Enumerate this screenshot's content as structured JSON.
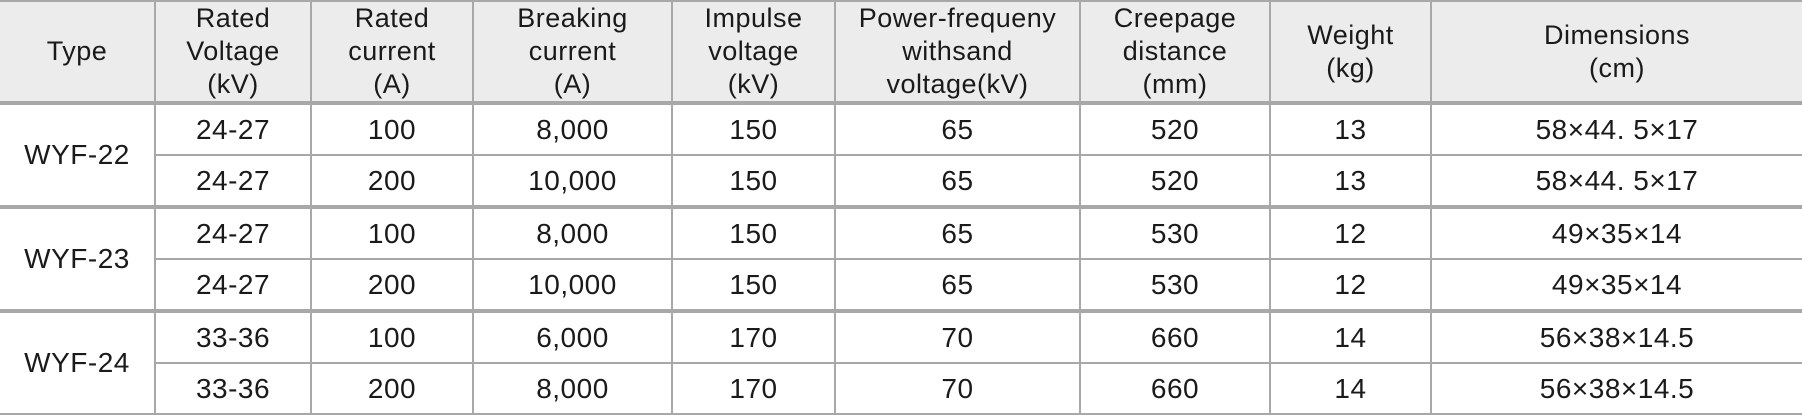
{
  "table": {
    "header": [
      [
        "Type"
      ],
      [
        "Rated",
        "Voltage",
        "(kV)"
      ],
      [
        "Rated",
        "current",
        "(A)"
      ],
      [
        "Breaking",
        "current",
        "(A)"
      ],
      [
        "Impulse",
        "voltage",
        "(kV)"
      ],
      [
        "Power-frequeny",
        "withsand",
        "voltage(kV)"
      ],
      [
        "Creepage",
        "distance",
        "(mm)"
      ],
      [
        "Weight",
        "(kg)"
      ],
      [
        "Dimensions",
        "(cm)"
      ]
    ],
    "groups": [
      {
        "type": "WYF-22",
        "rows": [
          [
            "24-27",
            "100",
            "8,000",
            "150",
            "65",
            "520",
            "13",
            "58×44. 5×17"
          ],
          [
            "24-27",
            "200",
            "10,000",
            "150",
            "65",
            "520",
            "13",
            "58×44. 5×17"
          ]
        ]
      },
      {
        "type": "WYF-23",
        "rows": [
          [
            "24-27",
            "100",
            "8,000",
            "150",
            "65",
            "530",
            "12",
            "49×35×14"
          ],
          [
            "24-27",
            "200",
            "10,000",
            "150",
            "65",
            "530",
            "12",
            "49×35×14"
          ]
        ]
      },
      {
        "type": "WYF-24",
        "rows": [
          [
            "33-36",
            "100",
            "6,000",
            "170",
            "70",
            "660",
            "14",
            "56×38×14.5"
          ],
          [
            "33-36",
            "200",
            "8,000",
            "170",
            "70",
            "660",
            "14",
            "56×38×14.5"
          ]
        ]
      }
    ]
  }
}
